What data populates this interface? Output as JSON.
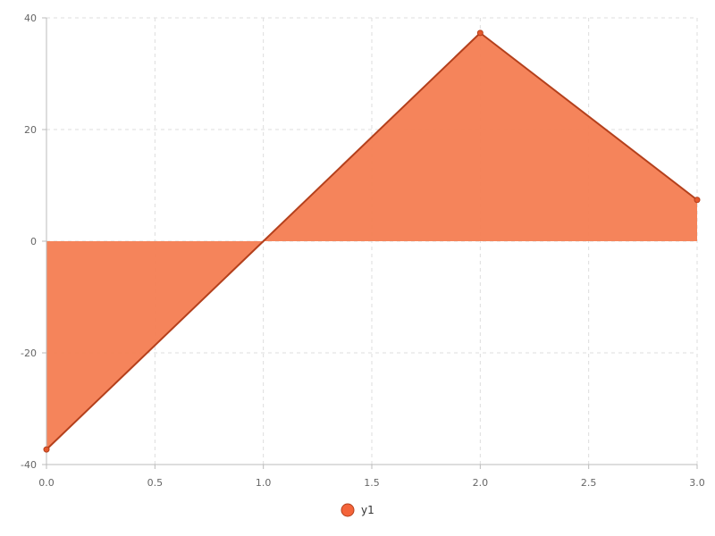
{
  "chart_data": {
    "type": "area",
    "x": [
      0,
      2,
      3
    ],
    "series": [
      {
        "name": "y1",
        "values": [
          -37.3,
          37.3,
          7.4
        ],
        "color": "#f4643a"
      }
    ],
    "xlim": [
      0,
      3
    ],
    "ylim": [
      -40,
      40
    ],
    "xticks": [
      0,
      0.5,
      1,
      1.5,
      2,
      2.5,
      3
    ],
    "yticks": [
      -40,
      -20,
      0,
      20,
      40
    ],
    "xtick_labels": [
      "0.0",
      "0.5",
      "1.0",
      "1.5",
      "2.0",
      "2.5",
      "3.0"
    ],
    "ytick_labels": [
      "-40",
      "-20",
      "0",
      "20",
      "40"
    ],
    "grid": true,
    "legend_position": "bottom-center",
    "fill_color": "#f47d52",
    "line_color": "#b4401c",
    "marker_color": "#e4582c"
  }
}
